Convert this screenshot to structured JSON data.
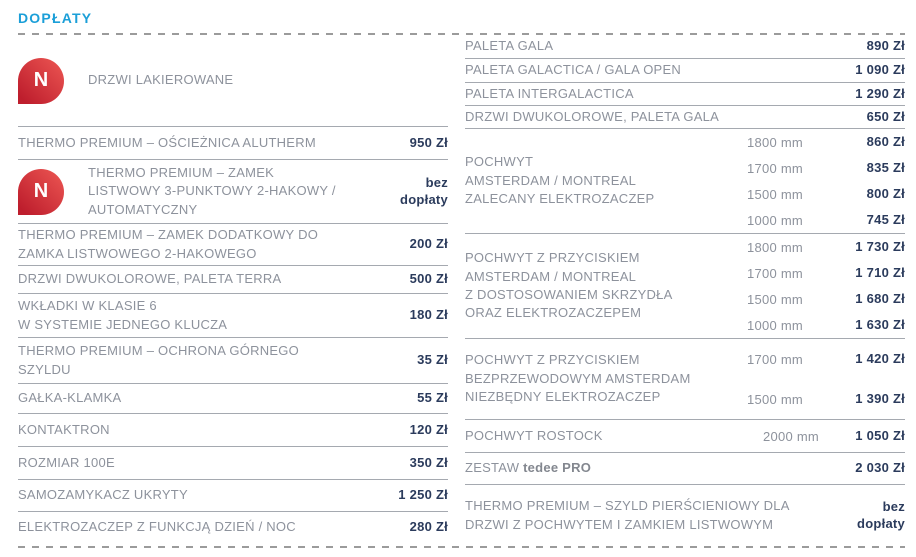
{
  "header": {
    "title": "DOPŁATY"
  },
  "icons": {
    "badge_letter": "N"
  },
  "colors": {
    "accent_cyan": "#1B9FD8",
    "label_gray": "#8D929C",
    "price_navy": "#2B3B5C",
    "badge_red_light": "#E8514F",
    "badge_red_dark": "#BE1E2D",
    "separator": "#A5A9B0",
    "dashed": "#9B9B9B"
  },
  "left": {
    "rows": [
      {
        "label": "DRZWI LAKIEROWANE",
        "price": ""
      },
      {
        "label": "THERMO PREMIUM – OŚCIEŻNICA ALUTHERM",
        "price": "950 Zł"
      },
      {
        "label": "THERMO PREMIUM – ZAMEK\nLISTWOWY 3-PUNKTOWY 2-HAKOWY /\nAUTOMATYCZNY",
        "price": "bez\ndopłaty"
      },
      {
        "label": "THERMO PREMIUM – ZAMEK DODATKOWY DO\nZAMKA LISTWOWEGO 2-HAKOWEGO",
        "price": "200 Zł"
      },
      {
        "label": "DRZWI DWUKOLOROWE, PALETA TERRA",
        "price": "500 Zł"
      },
      {
        "label": "WKŁADKI W KLASIE 6\nW SYSTEMIE JEDNEGO KLUCZA",
        "price": "180 Zł"
      },
      {
        "label": "THERMO PREMIUM – OCHRONA GÓRNEGO\nSZYLDU",
        "price": "35 Zł"
      },
      {
        "label": "GAŁKA-KLAMKA",
        "price": "55 Zł"
      },
      {
        "label": "KONTAKTRON",
        "price": "120 Zł"
      },
      {
        "label": "ROZMIAR 100E",
        "price": "350 Zł"
      },
      {
        "label": "SAMOZAMYKACZ UKRYTY",
        "price": "1 250 Zł"
      },
      {
        "label": "ELEKTROZACZEP Z FUNKCJĄ DZIEŃ / NOC",
        "price": "280 Zł"
      }
    ]
  },
  "right": {
    "simple_rows": [
      {
        "label": "PALETA GALA",
        "price": "890 Zł"
      },
      {
        "label": "PALETA GALACTICA / GALA OPEN",
        "price": "1 090 Zł"
      },
      {
        "label": "PALETA INTERGALACTICA",
        "price": "1 290 Zł"
      },
      {
        "label": "DRZWI DWUKOLOROWE, PALETA GALA",
        "price": "650 Zł"
      }
    ],
    "groups": [
      {
        "label": "POCHWYT\nAMSTERDAM / MONTREAL\nZALECANY ELEKTROZACZEP",
        "options": [
          {
            "size": "1800 mm",
            "price": "860 Zł"
          },
          {
            "size": "1700 mm",
            "price": "835 Zł"
          },
          {
            "size": "1500 mm",
            "price": "800 Zł"
          },
          {
            "size": "1000 mm",
            "price": "745 Zł"
          }
        ]
      },
      {
        "label": "POCHWYT Z PRZYCISKIEM\nAMSTERDAM / MONTREAL\nZ DOSTOSOWANIEM SKRZYDŁA\nORAZ ELEKTROZACZEPEM",
        "options": [
          {
            "size": "1800 mm",
            "price": "1 730 Zł"
          },
          {
            "size": "1700 mm",
            "price": "1 710 Zł"
          },
          {
            "size": "1500 mm",
            "price": "1 680 Zł"
          },
          {
            "size": "1000 mm",
            "price": "1 630 Zł"
          }
        ]
      },
      {
        "label": "POCHWYT Z PRZYCISKIEM\nBEZPRZEWODOWYM AMSTERDAM\nNIEZBĘDNY ELEKTROZACZEP",
        "options": [
          {
            "size": "1700 mm",
            "price": "1 420 Zł"
          },
          {
            "size": "1500 mm",
            "price": "1 390 Zł"
          }
        ]
      }
    ],
    "rostock": {
      "label": "POCHWYT ROSTOCK",
      "size": "2000 mm",
      "price": "1 050 Zł"
    },
    "tedee": {
      "prefix": "ZESTAW ",
      "brand": "tedee",
      "suffix": " PRO",
      "price": "2 030 Zł"
    },
    "last": {
      "label": "THERMO PREMIUM – SZYLD PIERŚCIENIOWY DLA\nDRZWI Z POCHWYTEM I ZAMKIEM LISTWOWYM",
      "price": "bez\ndopłaty"
    }
  }
}
